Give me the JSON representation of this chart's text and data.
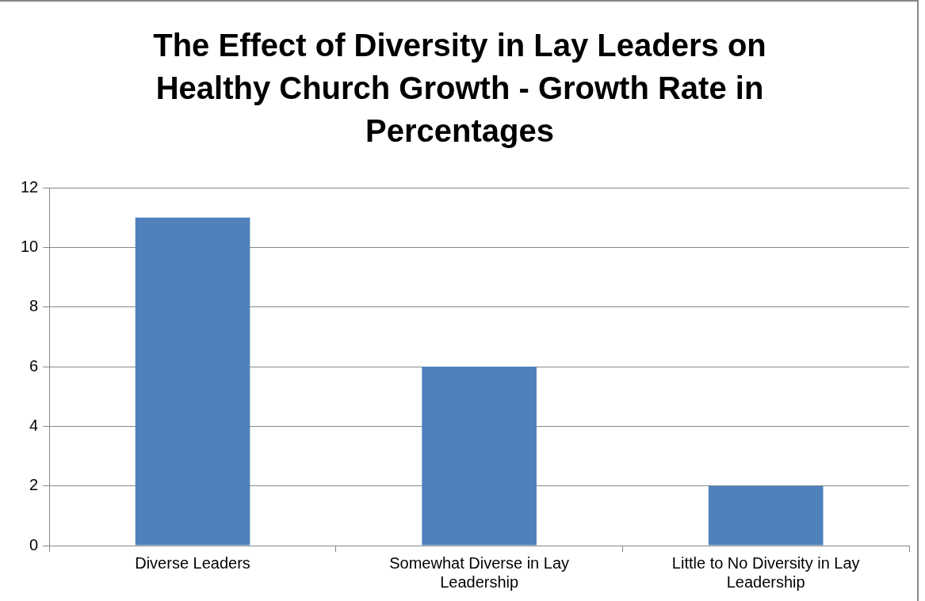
{
  "chart_data": {
    "type": "bar",
    "title": "The Effect of Diversity in Lay Leaders on Healthy Church Growth - Growth Rate in Percentages",
    "categories": [
      "Diverse Leaders",
      "Somewhat Diverse in Lay Leadership",
      "Little to No Diversity in Lay Leadership"
    ],
    "values": [
      11,
      6,
      2
    ],
    "color": "#4f81bd",
    "ylim": [
      0,
      12
    ],
    "yticks": [
      0,
      2,
      4,
      6,
      8,
      10,
      12
    ],
    "grid": "y",
    "legend": false
  }
}
